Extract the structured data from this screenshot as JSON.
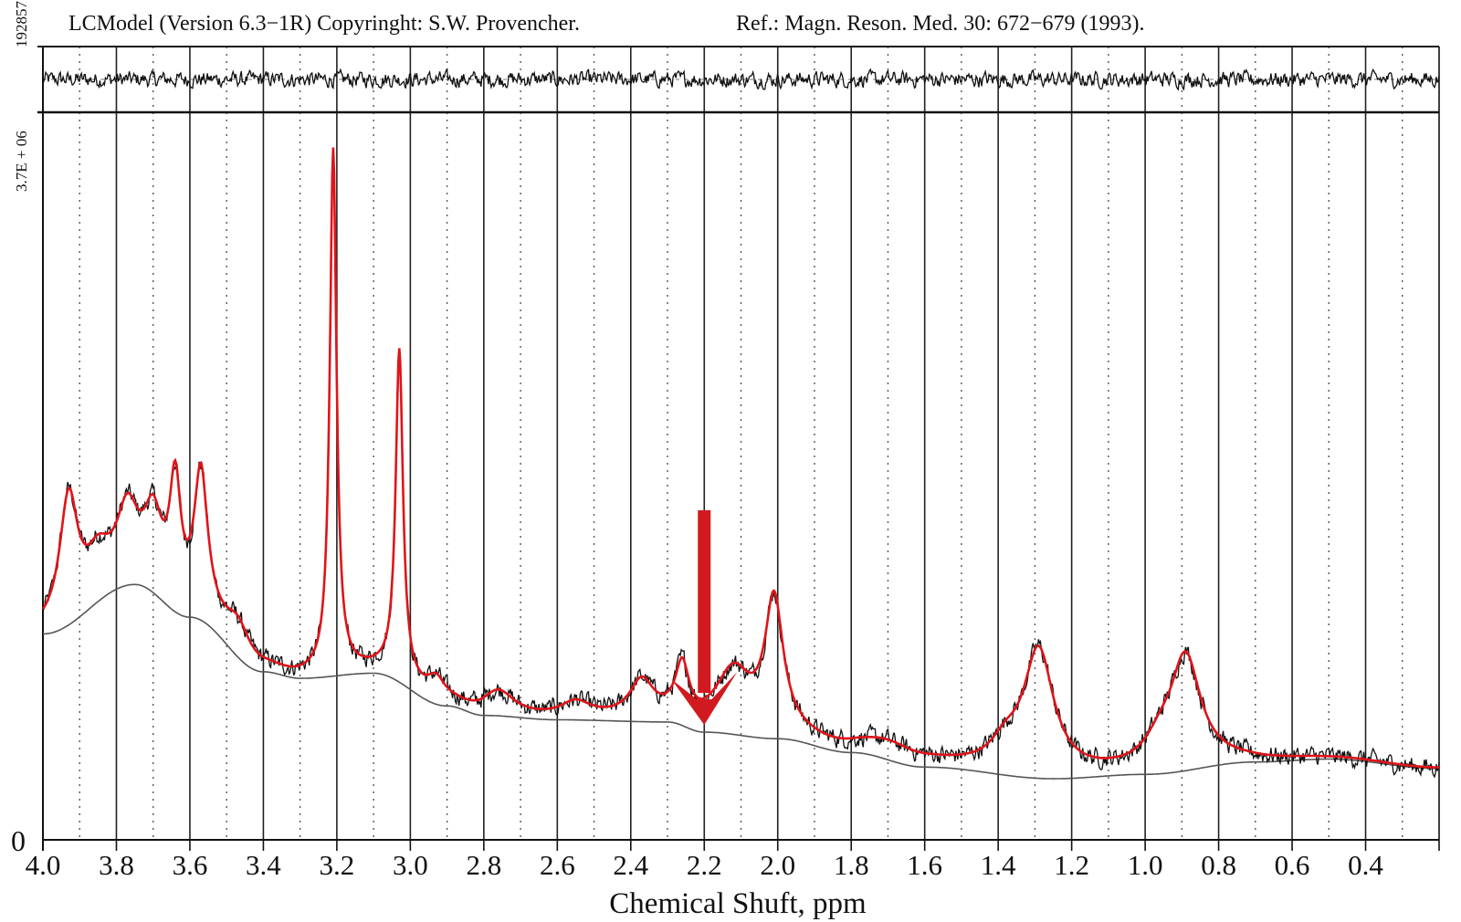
{
  "chart_data": {
    "type": "line",
    "title_left": "LCModel (Version 6.3−1R) Copyringht: S.W. Provencher.",
    "title_right": "Ref.: Magn. Reson. Med. 30: 672−679 (1993).",
    "xlabel": "Chemical Shuft, ppm",
    "xlim": [
      4.0,
      0.2
    ],
    "x_ticks": [
      "4.0",
      "3.8",
      "3.6",
      "3.4",
      "3.2",
      "3.0",
      "2.8",
      "2.6",
      "2.4",
      "2.2",
      "2.0",
      "1.8",
      "1.6",
      "1.4",
      "1.2",
      "1.0",
      "0.8",
      "0.6",
      "0.4"
    ],
    "x_tick_values": [
      4.0,
      3.8,
      3.6,
      3.4,
      3.2,
      3.0,
      2.8,
      2.6,
      2.4,
      2.2,
      2.0,
      1.8,
      1.6,
      1.4,
      1.2,
      1.0,
      0.8,
      0.6,
      0.4
    ],
    "grid": "vertical solid every 0.2 ppm, dotted every 0.1 ppm",
    "ylim_label_top": "3.7E + 06",
    "ylim_label_bottom": "0",
    "ylim": [
      0,
      3700000
    ],
    "residual_label": "192857",
    "residual_range": 192857,
    "colors": {
      "fit": "#e0141a",
      "data": "#111111",
      "baseline": "#555555",
      "arrow": "#d11a1f"
    },
    "baseline": {
      "ppm": [
        4.0,
        3.75,
        3.6,
        3.4,
        3.3,
        3.1,
        2.9,
        2.8,
        2.6,
        2.3,
        2.2,
        2.0,
        1.8,
        1.6,
        1.25,
        1.0,
        0.7,
        0.5,
        0.2
      ],
      "value": [
        0.283,
        0.351,
        0.306,
        0.231,
        0.222,
        0.229,
        0.184,
        0.171,
        0.165,
        0.162,
        0.148,
        0.139,
        0.12,
        0.1,
        0.084,
        0.09,
        0.107,
        0.111,
        0.098
      ]
    },
    "peaks": [
      {
        "ppm": 3.93,
        "amp": 0.17,
        "hwhm": 0.03
      },
      {
        "ppm": 3.85,
        "amp": 0.05,
        "hwhm": 0.04
      },
      {
        "ppm": 3.77,
        "amp": 0.09,
        "hwhm": 0.035
      },
      {
        "ppm": 3.7,
        "amp": 0.09,
        "hwhm": 0.03
      },
      {
        "ppm": 3.64,
        "amp": 0.16,
        "hwhm": 0.018
      },
      {
        "ppm": 3.57,
        "amp": 0.19,
        "hwhm": 0.022
      },
      {
        "ppm": 3.47,
        "amp": 0.04,
        "hwhm": 0.04
      },
      {
        "ppm": 3.21,
        "amp": 0.72,
        "hwhm": 0.011
      },
      {
        "ppm": 3.03,
        "amp": 0.45,
        "hwhm": 0.012
      },
      {
        "ppm": 2.93,
        "amp": 0.03,
        "hwhm": 0.03
      },
      {
        "ppm": 2.76,
        "amp": 0.03,
        "hwhm": 0.05
      },
      {
        "ppm": 2.55,
        "amp": 0.02,
        "hwhm": 0.05
      },
      {
        "ppm": 2.37,
        "amp": 0.05,
        "hwhm": 0.04
      },
      {
        "ppm": 2.26,
        "amp": 0.07,
        "hwhm": 0.022
      },
      {
        "ppm": 2.12,
        "amp": 0.08,
        "hwhm": 0.06
      },
      {
        "ppm": 2.01,
        "amp": 0.18,
        "hwhm": 0.03
      },
      {
        "ppm": 1.7,
        "amp": 0.02,
        "hwhm": 0.1
      },
      {
        "ppm": 1.38,
        "amp": 0.03,
        "hwhm": 0.05
      },
      {
        "ppm": 1.29,
        "amp": 0.17,
        "hwhm": 0.05
      },
      {
        "ppm": 0.96,
        "amp": 0.03,
        "hwhm": 0.05
      },
      {
        "ppm": 0.89,
        "amp": 0.15,
        "hwhm": 0.05
      }
    ],
    "series": [
      {
        "name": "data (spectrum)"
      },
      {
        "name": "fit"
      },
      {
        "name": "baseline"
      },
      {
        "name": "residual"
      }
    ],
    "annotation": {
      "type": "arrow",
      "ppm": 2.2,
      "tip_value": 0.158
    }
  }
}
